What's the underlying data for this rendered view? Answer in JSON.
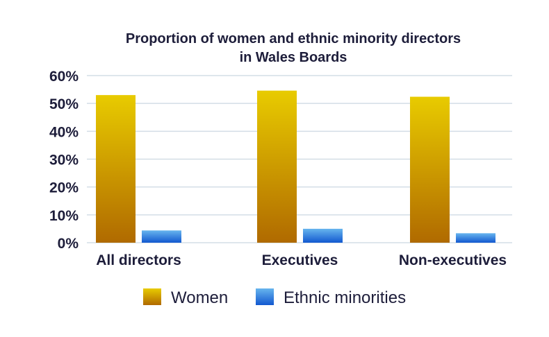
{
  "chart_data": {
    "type": "bar",
    "title_lines": [
      "Proportion of women and ethnic minority directors",
      "in Wales Boards"
    ],
    "categories": [
      "All directors",
      "Executives",
      "Non-executives"
    ],
    "series": [
      {
        "name": "Women",
        "values": [
          53.0,
          54.6,
          52.4
        ],
        "color_top": "#e8cb00",
        "color_bottom": "#b06a00"
      },
      {
        "name": "Ethnic minorities",
        "values": [
          4.4,
          5.0,
          3.4
        ],
        "color_top": "#67b5ee",
        "color_bottom": "#1258d0"
      }
    ],
    "yticks": [
      "0%",
      "10%",
      "20%",
      "30%",
      "40%",
      "50%",
      "60%"
    ],
    "ylim": [
      0,
      60
    ],
    "unit": "%",
    "grid": true,
    "gridline_color": "#d3dde6",
    "legend_position": "bottom"
  }
}
